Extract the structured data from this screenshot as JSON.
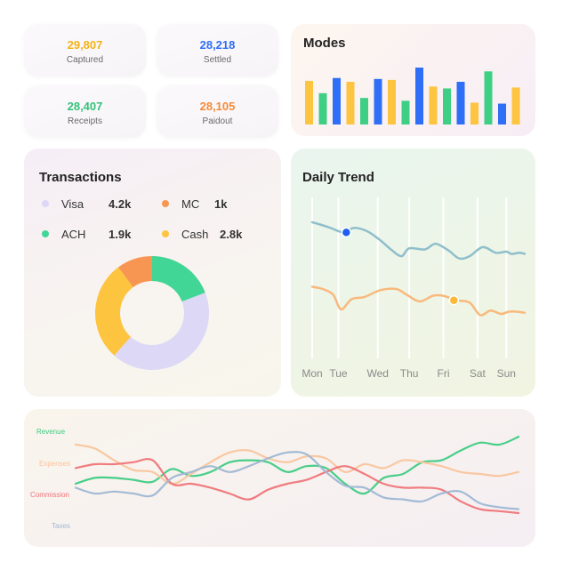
{
  "stats": [
    {
      "value": "29,807",
      "label": "Captured",
      "color": "#f5b21a"
    },
    {
      "value": "28,218",
      "label": "Settled",
      "color": "#2f6ef6"
    },
    {
      "value": "28,407",
      "label": "Receipts",
      "color": "#35c27a"
    },
    {
      "value": "28,105",
      "label": "Paidout",
      "color": "#f58a3a"
    }
  ],
  "modes": {
    "title": "Modes"
  },
  "transactions": {
    "title": "Transactions",
    "legend": [
      {
        "name": "Visa",
        "value": "4.2k",
        "color": "#dcd8f6"
      },
      {
        "name": "MC",
        "value": "1k",
        "color": "#f79552"
      },
      {
        "name": "ACH",
        "value": "1.9k",
        "color": "#42d696"
      },
      {
        "name": "Cash",
        "value": "2.8k",
        "color": "#fdc440"
      }
    ]
  },
  "trend": {
    "title": "Daily Trend"
  },
  "chart_data": [
    {
      "type": "bar",
      "title": "Modes",
      "values": [
        46,
        33,
        49,
        45,
        28,
        48,
        47,
        25,
        60,
        40,
        38,
        45,
        23,
        56,
        22,
        39
      ],
      "colors": [
        "#fdc440",
        "#3ecf85",
        "#2f6ef6",
        "#fdc440",
        "#3ecf85",
        "#2f6ef6",
        "#fdc440",
        "#3ecf85",
        "#2f6ef6",
        "#fdc440",
        "#3ecf85",
        "#2f6ef6",
        "#fdc440",
        "#3ecf85",
        "#2f6ef6",
        "#fdc440"
      ],
      "ylim": [
        0,
        60
      ]
    },
    {
      "type": "pie",
      "title": "Transactions",
      "donut": true,
      "categories": [
        "Visa",
        "MC",
        "ACH",
        "Cash"
      ],
      "values": [
        4.2,
        1.0,
        1.9,
        2.8
      ],
      "colors": [
        "#dcd8f6",
        "#f79552",
        "#42d696",
        "#fdc440"
      ]
    },
    {
      "type": "line",
      "title": "Daily Trend",
      "categories": [
        "Mon",
        "Tue",
        "Wed",
        "Thu",
        "Fri",
        "Sat",
        "Sun"
      ],
      "x_positions": [
        0,
        1,
        2.5,
        3.7,
        5,
        6.3,
        7.4
      ],
      "series": [
        {
          "color": "#8fbfcb",
          "values": [
            [
              0,
              82
            ],
            [
              0.3,
              80
            ],
            [
              0.7,
              77
            ],
            [
              1.2,
              73
            ],
            [
              1.6,
              77
            ],
            [
              2.1,
              74
            ],
            [
              2.6,
              66
            ],
            [
              3.0,
              58
            ],
            [
              3.4,
              52
            ],
            [
              3.7,
              59
            ],
            [
              4.3,
              58
            ],
            [
              4.7,
              63
            ],
            [
              5.2,
              57
            ],
            [
              5.6,
              50
            ],
            [
              6.0,
              52
            ],
            [
              6.5,
              60
            ],
            [
              7.0,
              55
            ],
            [
              7.4,
              56
            ],
            [
              7.6,
              54
            ],
            [
              7.9,
              55
            ],
            [
              8.1,
              54
            ]
          ],
          "marker": [
            1.3,
            73
          ],
          "marker_color": "#1f5ef0"
        },
        {
          "color": "#f8b97c",
          "values": [
            [
              0,
              25
            ],
            [
              0.4,
              23
            ],
            [
              0.8,
              18
            ],
            [
              1.1,
              5
            ],
            [
              1.5,
              14
            ],
            [
              2.0,
              16
            ],
            [
              2.6,
              22
            ],
            [
              3.2,
              23
            ],
            [
              3.6,
              18
            ],
            [
              4.1,
              12
            ],
            [
              4.6,
              17
            ],
            [
              5.0,
              17
            ],
            [
              5.5,
              13
            ],
            [
              6.0,
              11
            ],
            [
              6.4,
              0
            ],
            [
              6.8,
              4
            ],
            [
              7.2,
              1
            ],
            [
              7.5,
              3
            ],
            [
              7.8,
              3
            ],
            [
              8.1,
              2
            ]
          ],
          "marker": [
            5.4,
            13
          ],
          "marker_color": "#f9b93a"
        }
      ],
      "ylim": [
        -10,
        100
      ]
    },
    {
      "type": "line",
      "series": [
        {
          "name": "Revenue",
          "color": "#3ecb82",
          "values": [
            40,
            46,
            46,
            44,
            42,
            55,
            48,
            52,
            62,
            64,
            62,
            52,
            58,
            56,
            40,
            30,
            46,
            50,
            62,
            64,
            74,
            82,
            80,
            88
          ]
        },
        {
          "name": "Expenses",
          "color": "#f9c49c",
          "values": [
            80,
            76,
            64,
            54,
            52,
            40,
            50,
            62,
            72,
            74,
            66,
            62,
            68,
            66,
            52,
            60,
            56,
            64,
            62,
            58,
            52,
            50,
            48,
            52
          ]
        },
        {
          "name": "Commission",
          "color": "#ef7478",
          "values": [
            56,
            60,
            60,
            62,
            64,
            40,
            40,
            36,
            30,
            24,
            34,
            40,
            44,
            52,
            58,
            50,
            40,
            36,
            36,
            34,
            22,
            14,
            12,
            10
          ]
        },
        {
          "name": "Taxes",
          "color": "#9fb7d3",
          "values": [
            36,
            30,
            32,
            30,
            28,
            46,
            52,
            58,
            52,
            58,
            66,
            72,
            70,
            52,
            38,
            36,
            26,
            24,
            22,
            30,
            32,
            20,
            16,
            14
          ]
        }
      ],
      "ylim": [
        0,
        100
      ]
    }
  ]
}
